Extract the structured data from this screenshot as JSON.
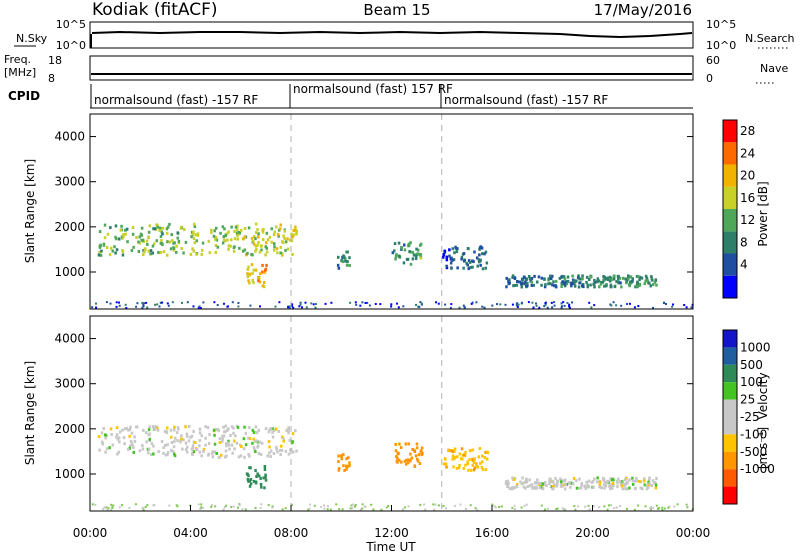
{
  "header": {
    "radar": "Kodiak (fitACF)",
    "beam": "Beam 15",
    "date": "17/May/2016"
  },
  "panels": {
    "nsky": {
      "label": "N.Sky",
      "right_label": "N.Search",
      "ticks_left": [
        "10^5",
        "10^0"
      ],
      "ticks_right": [
        "10^5",
        "10^0"
      ]
    },
    "freq": {
      "label_top": "Freq.",
      "label_unit": "[MHz]",
      "ticks_left": [
        "18",
        "8"
      ],
      "right_label": "Nave",
      "ticks_right": [
        "60",
        "0"
      ]
    },
    "cpid": {
      "label": "CPID",
      "segments": [
        "normalsound (fast) -157 RF",
        "normalsound (fast) 157 RF",
        "normalsound (fast) -157 RF"
      ]
    }
  },
  "colors": {
    "power_scale": [
      "#0000ff",
      "#1f4fa0",
      "#2d7f6a",
      "#4fa85a",
      "#c8d02a",
      "#f0b400",
      "#ff6a00",
      "#ff0000"
    ],
    "velocity_scale": [
      "#ff0000",
      "#ff5a00",
      "#ff9600",
      "#ffc400",
      "#c8c8c8",
      "#c8c8c8",
      "#44c422",
      "#2e8b57",
      "#1f5fa0",
      "#1414c8"
    ],
    "dash": "#b0b0b0"
  },
  "power_colorbar": {
    "label": "Power [dB]",
    "ticks": [
      "28",
      "24",
      "20",
      "16",
      "12",
      "8",
      "4"
    ]
  },
  "velocity_colorbar": {
    "label": "Velocity",
    "unit": "[m s⁻¹]",
    "ticks": [
      "1000",
      "500",
      "100",
      "25",
      "-25",
      "-100",
      "-500",
      "-1000"
    ]
  },
  "chart_data": {
    "type": "heatmap",
    "x_axis": {
      "label": "Time UT",
      "ticks": [
        "00:00",
        "04:00",
        "08:00",
        "12:00",
        "16:00",
        "20:00",
        "00:00"
      ],
      "range_hours": [
        0,
        24
      ]
    },
    "y_axis": {
      "label": "Slant Range [km]",
      "ticks": [
        1000,
        2000,
        3000,
        4000
      ],
      "range_km": [
        180,
        4500
      ]
    },
    "mode_change_hours": [
      8,
      14
    ],
    "panels": [
      {
        "quantity": "power",
        "regions": [
          {
            "name": "main-arc",
            "t_start": 0.3,
            "t_end": 8.2,
            "range_start": 1400,
            "range_end": 2100,
            "value": 14
          },
          {
            "name": "lower-blob",
            "t_start": 6.2,
            "t_end": 7.0,
            "range_start": 700,
            "range_end": 1200,
            "value": 20
          },
          {
            "name": "midnight-echo",
            "t_start": 9.8,
            "t_end": 10.3,
            "range_start": 1100,
            "range_end": 1500,
            "value": 8
          },
          {
            "name": "noon-echo",
            "t_start": 12.0,
            "t_end": 13.2,
            "range_start": 1200,
            "range_end": 1700,
            "value": 10
          },
          {
            "name": "afternoon-echo",
            "t_start": 14.0,
            "t_end": 15.8,
            "range_start": 1100,
            "range_end": 1600,
            "value": 6
          },
          {
            "name": "evening-band",
            "t_start": 16.5,
            "t_end": 22.5,
            "range_start": 700,
            "range_end": 950,
            "value": 8
          }
        ]
      },
      {
        "quantity": "velocity",
        "regions": [
          {
            "name": "main-arc",
            "t_start": 0.3,
            "t_end": 8.2,
            "range_start": 1400,
            "range_end": 2100,
            "value": 0
          },
          {
            "name": "lower-blob",
            "t_start": 6.2,
            "t_end": 7.0,
            "range_start": 700,
            "range_end": 1200,
            "value": 200
          },
          {
            "name": "midnight-echo",
            "t_start": 9.8,
            "t_end": 10.3,
            "range_start": 1100,
            "range_end": 1500,
            "value": -150
          },
          {
            "name": "noon-echo",
            "t_start": 12.0,
            "t_end": 13.2,
            "range_start": 1200,
            "range_end": 1700,
            "value": -300
          },
          {
            "name": "afternoon-echo",
            "t_start": 14.0,
            "t_end": 15.8,
            "range_start": 1100,
            "range_end": 1600,
            "value": -80
          },
          {
            "name": "evening-band",
            "t_start": 16.5,
            "t_end": 22.5,
            "range_start": 700,
            "range_end": 950,
            "value": 0
          }
        ]
      }
    ]
  }
}
